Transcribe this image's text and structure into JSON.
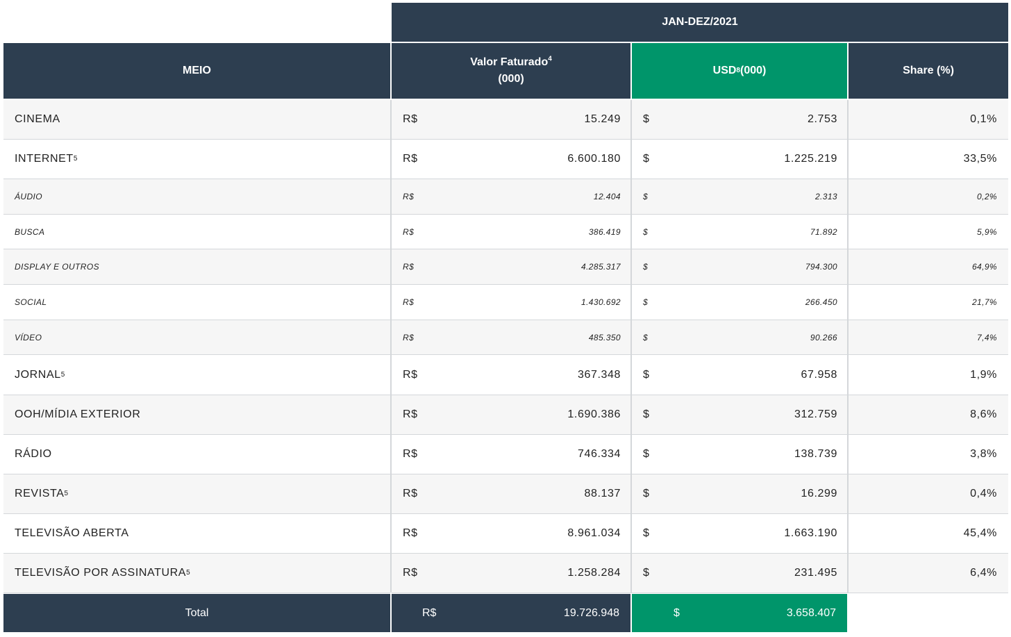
{
  "header": {
    "period": "JAN-DEZ/2021",
    "col_meio": "MEIO",
    "col_valor_line1": "Valor Faturado",
    "col_valor_sup": "4",
    "col_valor_line2": "(000)",
    "col_usd": "USD",
    "col_usd_sup": "8",
    "col_usd_suffix": "(000)",
    "col_share": "Share (%)"
  },
  "rows": [
    {
      "meio": "CINEMA",
      "sup": "",
      "brl_symbol": "R$",
      "brl": "15.249",
      "usd_symbol": "$",
      "usd": "2.753",
      "share": "0,1%",
      "sub": false
    },
    {
      "meio": "INTERNET",
      "sup": "5",
      "brl_symbol": "R$",
      "brl": "6.600.180",
      "usd_symbol": "$",
      "usd": "1.225.219",
      "share": "33,5%",
      "sub": false
    },
    {
      "meio": "ÁUDIO",
      "sup": "",
      "brl_symbol": "R$",
      "brl": "12.404",
      "usd_symbol": "$",
      "usd": "2.313",
      "share": "0,2%",
      "sub": true
    },
    {
      "meio": "BUSCA",
      "sup": "",
      "brl_symbol": "R$",
      "brl": "386.419",
      "usd_symbol": "$",
      "usd": "71.892",
      "share": "5,9%",
      "sub": true
    },
    {
      "meio": "DISPLAY E OUTROS",
      "sup": "",
      "brl_symbol": "R$",
      "brl": "4.285.317",
      "usd_symbol": "$",
      "usd": "794.300",
      "share": "64,9%",
      "sub": true
    },
    {
      "meio": "SOCIAL",
      "sup": "",
      "brl_symbol": "R$",
      "brl": "1.430.692",
      "usd_symbol": "$",
      "usd": "266.450",
      "share": "21,7%",
      "sub": true
    },
    {
      "meio": "VÍDEO",
      "sup": "",
      "brl_symbol": "R$",
      "brl": "485.350",
      "usd_symbol": "$",
      "usd": "90.266",
      "share": "7,4%",
      "sub": true
    },
    {
      "meio": "JORNAL",
      "sup": "5",
      "brl_symbol": "R$",
      "brl": "367.348",
      "usd_symbol": "$",
      "usd": "67.958",
      "share": "1,9%",
      "sub": false
    },
    {
      "meio": "OOH/MÍDIA EXTERIOR",
      "sup": "",
      "brl_symbol": "R$",
      "brl": "1.690.386",
      "usd_symbol": "$",
      "usd": "312.759",
      "share": "8,6%",
      "sub": false
    },
    {
      "meio": "RÁDIO",
      "sup": "",
      "brl_symbol": "R$",
      "brl": "746.334",
      "usd_symbol": "$",
      "usd": "138.739",
      "share": "3,8%",
      "sub": false
    },
    {
      "meio": "REVISTA",
      "sup": "5",
      "brl_symbol": "R$",
      "brl": "88.137",
      "usd_symbol": "$",
      "usd": "16.299",
      "share": "0,4%",
      "sub": false
    },
    {
      "meio": "TELEVISÃO ABERTA",
      "sup": "",
      "brl_symbol": "R$",
      "brl": "8.961.034",
      "usd_symbol": "$",
      "usd": "1.663.190",
      "share": "45,4%",
      "sub": false
    },
    {
      "meio": "TELEVISÃO POR ASSINATURA",
      "sup": "5",
      "brl_symbol": "R$",
      "brl": "1.258.284",
      "usd_symbol": "$",
      "usd": "231.495",
      "share": "6,4%",
      "sub": false
    }
  ],
  "total": {
    "label": "Total",
    "brl_symbol": "R$",
    "brl": "19.726.948",
    "usd_symbol": "$",
    "usd": "3.658.407"
  },
  "colors": {
    "header_dark": "#2d3e50",
    "accent_green": "#00956a",
    "row_alt": "#f6f6f6"
  }
}
